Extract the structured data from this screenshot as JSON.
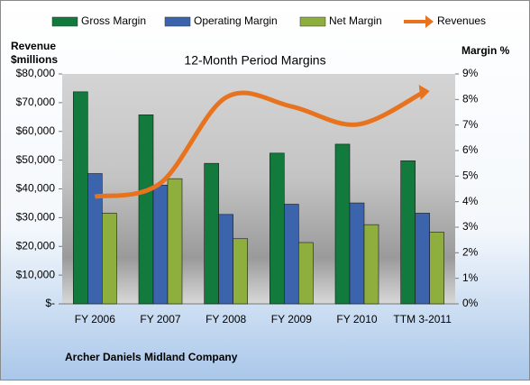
{
  "chart_data": {
    "type": "bar_line",
    "title": "12-Month Period Margins",
    "ylabel": [
      "Revenue",
      "$millions"
    ],
    "y2label": "Margin %",
    "footer": "Archer Daniels Midland Company",
    "categories": [
      "FY 2006",
      "FY 2007",
      "FY 2008",
      "FY 2009",
      "FY 2010",
      "TTM 3-2011"
    ],
    "series": [
      {
        "name": "Gross Margin",
        "color": "#127a3c",
        "type": "bar",
        "axis": "y2",
        "values": [
          8.3,
          7.4,
          5.5,
          5.9,
          6.25,
          5.6
        ]
      },
      {
        "name": "Operating Margin",
        "color": "#3b64ad",
        "type": "bar",
        "axis": "y2",
        "values": [
          5.1,
          4.65,
          3.5,
          3.9,
          3.95,
          3.55
        ]
      },
      {
        "name": "Net Margin",
        "color": "#8eae3e",
        "type": "bar",
        "axis": "y2",
        "values": [
          3.55,
          4.9,
          2.55,
          2.4,
          3.1,
          2.8
        ]
      },
      {
        "name": "Revenues",
        "color": "#e8731e",
        "type": "line",
        "axis": "y",
        "values": [
          37300,
          42000,
          71800,
          68700,
          62400,
          73400
        ]
      }
    ],
    "ylim": [
      0,
      80000
    ],
    "yticks": [
      {
        "value": 0,
        "label": "$-"
      },
      {
        "value": 10000,
        "label": "$10,000"
      },
      {
        "value": 20000,
        "label": "$20,000"
      },
      {
        "value": 30000,
        "label": "$30,000"
      },
      {
        "value": 40000,
        "label": "$40,000"
      },
      {
        "value": 50000,
        "label": "$50,000"
      },
      {
        "value": 60000,
        "label": "$60,000"
      },
      {
        "value": 70000,
        "label": "$70,000"
      },
      {
        "value": 80000,
        "label": "$80,000"
      }
    ],
    "y2lim": [
      0,
      9
    ],
    "y2ticks": [
      {
        "value": 0,
        "label": "0%"
      },
      {
        "value": 1,
        "label": "1%"
      },
      {
        "value": 2,
        "label": "2%"
      },
      {
        "value": 3,
        "label": "3%"
      },
      {
        "value": 4,
        "label": "4%"
      },
      {
        "value": 5,
        "label": "5%"
      },
      {
        "value": 6,
        "label": "6%"
      },
      {
        "value": 7,
        "label": "7%"
      },
      {
        "value": 8,
        "label": "8%"
      },
      {
        "value": 9,
        "label": "9%"
      }
    ]
  }
}
